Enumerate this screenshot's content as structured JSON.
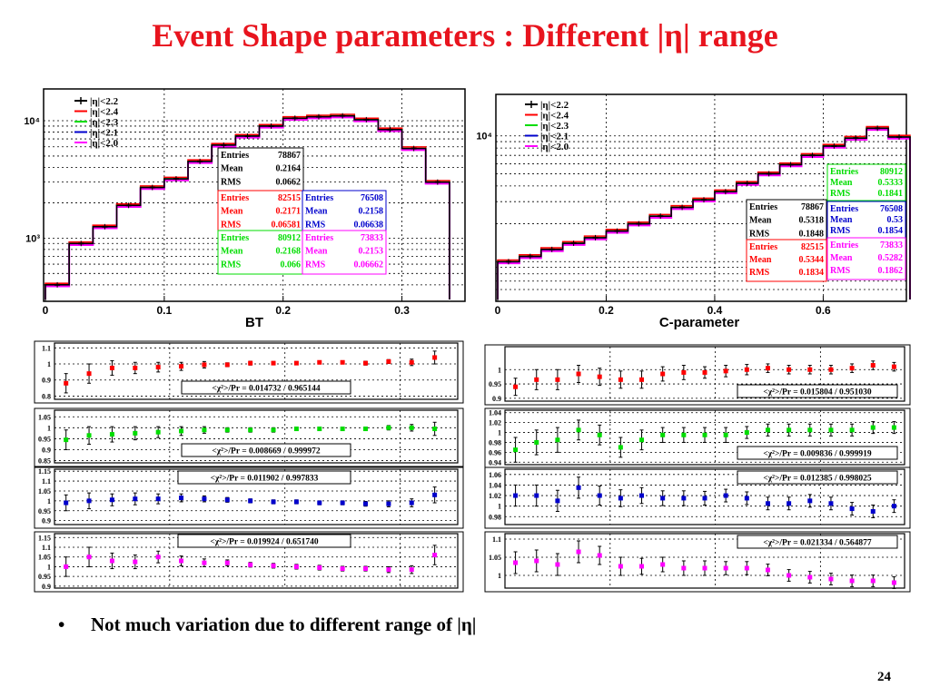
{
  "slide": {
    "title": "Event Shape parameters : Different |η| range",
    "bullet": "Not much variation due to different range of |η|",
    "page_number": "24"
  },
  "colors": {
    "title": "#e8141e",
    "eta22": "#000000",
    "eta24": "#ff0000",
    "eta23": "#00dd00",
    "eta21": "#0000cc",
    "eta20": "#ff00ff"
  },
  "chart_data": [
    {
      "id": "bt_dist",
      "type": "line",
      "xlabel": "BT",
      "xlim": [
        0,
        0.35
      ],
      "ylog": true,
      "ylim": [
        300,
        18000
      ],
      "x_ticks": [
        0,
        0.1,
        0.2,
        0.3
      ],
      "x_tick_labels": [
        "0",
        "0.1",
        "0.2",
        "0.3"
      ],
      "y_ticks": [
        1000,
        10000
      ],
      "y_tick_labels": [
        "10³",
        "10⁴"
      ],
      "legend": [
        "|η|<2.2",
        "|η|<2.4",
        "|η|<2.3",
        "|η|<2.1",
        "|η|<2.0"
      ],
      "x": [
        0.01,
        0.03,
        0.05,
        0.07,
        0.09,
        0.11,
        0.13,
        0.15,
        0.17,
        0.19,
        0.21,
        0.23,
        0.25,
        0.27,
        0.29,
        0.31,
        0.33
      ],
      "values": [
        400,
        900,
        1250,
        1900,
        2700,
        3200,
        4500,
        6200,
        7400,
        9000,
        10500,
        10800,
        11000,
        10200,
        8400,
        5800,
        3000
      ],
      "stats": [
        {
          "series": "|η|<2.2",
          "rows": [
            [
              "Entries",
              "78867"
            ],
            [
              "Mean",
              "0.2164"
            ],
            [
              "RMS",
              "0.0662"
            ]
          ]
        },
        {
          "series": "|η|<2.4",
          "rows": [
            [
              "Entries",
              "82515"
            ],
            [
              "Mean",
              "0.2171"
            ],
            [
              "RMS",
              "0.06581"
            ]
          ]
        },
        {
          "series": "|η|<2.1",
          "rows": [
            [
              "Entries",
              "76508"
            ],
            [
              "Mean",
              "0.2158"
            ],
            [
              "RMS",
              "0.06638"
            ]
          ]
        },
        {
          "series": "|η|<2.3",
          "rows": [
            [
              "Entries",
              "80912"
            ],
            [
              "Mean",
              "0.2168"
            ],
            [
              "RMS",
              "0.066"
            ]
          ]
        },
        {
          "series": "|η|<2.0",
          "rows": [
            [
              "Entries",
              "73833"
            ],
            [
              "Mean",
              "0.2153"
            ],
            [
              "RMS",
              "0.06662"
            ]
          ]
        }
      ]
    },
    {
      "id": "c_dist",
      "type": "line",
      "xlabel": "C-parameter",
      "xlim": [
        0,
        0.75
      ],
      "ylog": true,
      "ylim": [
        500,
        20000
      ],
      "x_ticks": [
        0,
        0.2,
        0.4,
        0.6
      ],
      "x_tick_labels": [
        "0",
        "0.2",
        "0.4",
        "0.6"
      ],
      "y_ticks": [
        10000
      ],
      "y_tick_labels": [
        "10⁴"
      ],
      "legend": [
        "|η|<2.2",
        "|η|<2.4",
        "|η|<2.3",
        "|η|<2.1",
        "|η|<2.0"
      ],
      "x": [
        0.02,
        0.06,
        0.1,
        0.14,
        0.18,
        0.22,
        0.26,
        0.3,
        0.34,
        0.38,
        0.42,
        0.46,
        0.5,
        0.54,
        0.58,
        0.62,
        0.66,
        0.7,
        0.74
      ],
      "values": [
        1000,
        1100,
        1250,
        1400,
        1550,
        1750,
        2000,
        2300,
        2700,
        3100,
        3600,
        4200,
        5000,
        5900,
        7000,
        8300,
        9600,
        11500,
        9800
      ],
      "stats": [
        {
          "series": "|η|<2.3",
          "rows": [
            [
              "Entries",
              "80912"
            ],
            [
              "Mean",
              "0.5333"
            ],
            [
              "RMS",
              "0.1841"
            ]
          ]
        },
        {
          "series": "|η|<2.1",
          "rows": [
            [
              "Entries",
              "76508"
            ],
            [
              "Mean",
              "0.53"
            ],
            [
              "RMS",
              "0.1854"
            ]
          ]
        },
        {
          "series": "|η|<2.2",
          "rows": [
            [
              "Entries",
              "78867"
            ],
            [
              "Mean",
              "0.5318"
            ],
            [
              "RMS",
              "0.1848"
            ]
          ]
        },
        {
          "series": "|η|<2.0",
          "rows": [
            [
              "Entries",
              "73833"
            ],
            [
              "Mean",
              "0.5282"
            ],
            [
              "RMS",
              "0.1862"
            ]
          ]
        },
        {
          "series": "|η|<2.4",
          "rows": [
            [
              "Entries",
              "82515"
            ],
            [
              "Mean",
              "0.5344"
            ],
            [
              "RMS",
              "0.1834"
            ]
          ]
        }
      ]
    },
    {
      "id": "bt_ratio_24",
      "type": "scatter",
      "series": "|η|<2.4",
      "color": "#ff0000",
      "ylim": [
        0.78,
        1.13
      ],
      "y_tick_labels": [
        "1.1",
        "1",
        "0.9",
        "0.8"
      ],
      "y_ticks": [
        1.1,
        1.0,
        0.9,
        0.8
      ],
      "chi_text": "<χ²>/Pr = 0.014732 / 0.965144",
      "x": [
        0.01,
        0.03,
        0.05,
        0.07,
        0.09,
        0.11,
        0.13,
        0.15,
        0.17,
        0.19,
        0.21,
        0.23,
        0.25,
        0.27,
        0.29,
        0.31,
        0.33
      ],
      "values": [
        0.88,
        0.94,
        0.975,
        0.975,
        0.98,
        0.985,
        0.995,
        0.995,
        1.005,
        1.005,
        1.005,
        1.01,
        1.01,
        1.005,
        1.015,
        1.01,
        1.04
      ],
      "errors": [
        0.06,
        0.06,
        0.045,
        0.035,
        0.03,
        0.025,
        0.02,
        0.012,
        0.012,
        0.01,
        0.01,
        0.01,
        0.01,
        0.012,
        0.012,
        0.02,
        0.04
      ]
    },
    {
      "id": "bt_ratio_23",
      "type": "scatter",
      "series": "|η|<2.3",
      "color": "#00dd00",
      "ylim": [
        0.84,
        1.08
      ],
      "y_tick_labels": [
        "1.05",
        "1",
        "0.95",
        "0.9",
        "0.85"
      ],
      "y_ticks": [
        1.05,
        1.0,
        0.95,
        0.9,
        0.85
      ],
      "chi_text": "<χ²>/Pr = 0.008669 / 0.999972",
      "x": [
        0.01,
        0.03,
        0.05,
        0.07,
        0.09,
        0.11,
        0.13,
        0.15,
        0.17,
        0.19,
        0.21,
        0.23,
        0.25,
        0.27,
        0.29,
        0.31,
        0.33
      ],
      "values": [
        0.945,
        0.965,
        0.97,
        0.975,
        0.98,
        0.985,
        0.99,
        0.99,
        0.99,
        0.99,
        0.995,
        0.995,
        0.995,
        0.995,
        1.0,
        1.0,
        0.995
      ],
      "errors": [
        0.045,
        0.04,
        0.035,
        0.03,
        0.025,
        0.02,
        0.015,
        0.01,
        0.01,
        0.01,
        0.008,
        0.008,
        0.008,
        0.008,
        0.01,
        0.015,
        0.03
      ]
    },
    {
      "id": "bt_ratio_21",
      "type": "scatter",
      "series": "|η|<2.1",
      "color": "#0000cc",
      "ylim": [
        0.88,
        1.16
      ],
      "y_tick_labels": [
        "1.15",
        "1.1",
        "1.05",
        "1",
        "0.95",
        "0.9"
      ],
      "y_ticks": [
        1.15,
        1.1,
        1.05,
        1.0,
        0.95,
        0.9
      ],
      "chi_text": "<χ²>/Pr = 0.011902 / 0.997833",
      "x": [
        0.01,
        0.03,
        0.05,
        0.07,
        0.09,
        0.11,
        0.13,
        0.15,
        0.17,
        0.19,
        0.21,
        0.23,
        0.25,
        0.27,
        0.29,
        0.31,
        0.33
      ],
      "values": [
        0.99,
        1.0,
        1.005,
        1.01,
        1.01,
        1.015,
        1.01,
        1.005,
        1.0,
        0.995,
        0.995,
        0.99,
        0.99,
        0.985,
        0.985,
        0.99,
        1.03
      ],
      "errors": [
        0.04,
        0.04,
        0.03,
        0.03,
        0.025,
        0.02,
        0.015,
        0.012,
        0.01,
        0.01,
        0.01,
        0.01,
        0.01,
        0.012,
        0.015,
        0.02,
        0.04
      ]
    },
    {
      "id": "bt_ratio_20",
      "type": "scatter",
      "series": "|η|<2.0",
      "color": "#ff00ff",
      "ylim": [
        0.89,
        1.17
      ],
      "y_tick_labels": [
        "1.15",
        "1.1",
        "1.05",
        "1",
        "0.95",
        "0.9"
      ],
      "y_ticks": [
        1.15,
        1.1,
        1.05,
        1.0,
        0.95,
        0.9
      ],
      "chi_text": "<χ²>/Pr = 0.019924 / 0.651740",
      "x": [
        0.01,
        0.03,
        0.05,
        0.07,
        0.09,
        0.11,
        0.13,
        0.15,
        0.17,
        0.19,
        0.21,
        0.23,
        0.25,
        0.27,
        0.29,
        0.31,
        0.33
      ],
      "values": [
        1.0,
        1.05,
        1.03,
        1.025,
        1.05,
        1.03,
        1.02,
        1.02,
        1.01,
        1.005,
        1.0,
        0.995,
        0.99,
        0.99,
        0.985,
        0.985,
        1.06
      ],
      "errors": [
        0.05,
        0.05,
        0.04,
        0.035,
        0.03,
        0.025,
        0.02,
        0.015,
        0.012,
        0.012,
        0.012,
        0.012,
        0.012,
        0.012,
        0.015,
        0.02,
        0.05
      ]
    },
    {
      "id": "c_ratio_24",
      "type": "scatter",
      "series": "|η|<2.4",
      "color": "#ff0000",
      "ylim": [
        0.89,
        1.08
      ],
      "y_tick_labels": [
        "1",
        "0.95",
        "0.9"
      ],
      "y_ticks": [
        1.0,
        0.95,
        0.9
      ],
      "chi_text": "<χ²>/Pr = 0.015804 / 0.951030",
      "x": [
        0.02,
        0.06,
        0.1,
        0.14,
        0.18,
        0.22,
        0.26,
        0.3,
        0.34,
        0.38,
        0.42,
        0.46,
        0.5,
        0.54,
        0.58,
        0.62,
        0.66,
        0.7,
        0.74
      ],
      "values": [
        0.94,
        0.965,
        0.965,
        0.985,
        0.975,
        0.965,
        0.965,
        0.985,
        0.99,
        0.99,
        0.995,
        1.0,
        1.005,
        1.0,
        1.0,
        1.0,
        1.005,
        1.015,
        1.01
      ],
      "errors": [
        0.03,
        0.035,
        0.035,
        0.03,
        0.03,
        0.03,
        0.03,
        0.025,
        0.025,
        0.02,
        0.02,
        0.018,
        0.015,
        0.015,
        0.015,
        0.015,
        0.015,
        0.015,
        0.015
      ]
    },
    {
      "id": "c_ratio_23",
      "type": "scatter",
      "series": "|η|<2.3",
      "color": "#00dd00",
      "ylim": [
        0.935,
        1.045
      ],
      "y_tick_labels": [
        "1.04",
        "1.02",
        "1",
        "0.98",
        "0.96",
        "0.94"
      ],
      "y_ticks": [
        1.04,
        1.02,
        1.0,
        0.98,
        0.96,
        0.94
      ],
      "chi_text": "<χ²>/Pr = 0.009836 / 0.999919",
      "x": [
        0.02,
        0.06,
        0.1,
        0.14,
        0.18,
        0.22,
        0.26,
        0.3,
        0.34,
        0.38,
        0.42,
        0.46,
        0.5,
        0.54,
        0.58,
        0.62,
        0.66,
        0.7,
        0.74
      ],
      "values": [
        0.965,
        0.98,
        0.985,
        1.005,
        0.995,
        0.97,
        0.985,
        0.995,
        0.995,
        0.995,
        0.995,
        1.0,
        1.005,
        1.005,
        1.005,
        1.005,
        1.005,
        1.01,
        1.01
      ],
      "errors": [
        0.025,
        0.025,
        0.025,
        0.02,
        0.02,
        0.02,
        0.02,
        0.015,
        0.015,
        0.015,
        0.015,
        0.012,
        0.012,
        0.012,
        0.012,
        0.012,
        0.012,
        0.012,
        0.012
      ]
    },
    {
      "id": "c_ratio_21",
      "type": "scatter",
      "series": "|η|<2.1",
      "color": "#0000cc",
      "ylim": [
        0.965,
        1.07
      ],
      "y_tick_labels": [
        "1.06",
        "1.04",
        "1.02",
        "1",
        "0.98"
      ],
      "y_ticks": [
        1.06,
        1.04,
        1.02,
        1.0,
        0.98
      ],
      "chi_text": "<χ²>/Pr = 0.012385 / 0.998025",
      "x": [
        0.02,
        0.06,
        0.1,
        0.14,
        0.18,
        0.22,
        0.26,
        0.3,
        0.34,
        0.38,
        0.42,
        0.46,
        0.5,
        0.54,
        0.58,
        0.62,
        0.66,
        0.7,
        0.74
      ],
      "values": [
        1.02,
        1.02,
        1.01,
        1.035,
        1.02,
        1.015,
        1.02,
        1.015,
        1.015,
        1.015,
        1.02,
        1.015,
        1.005,
        1.005,
        1.01,
        1.005,
        0.995,
        0.99,
        1.0
      ],
      "errors": [
        0.02,
        0.02,
        0.02,
        0.02,
        0.018,
        0.016,
        0.015,
        0.014,
        0.014,
        0.013,
        0.012,
        0.012,
        0.012,
        0.012,
        0.012,
        0.012,
        0.012,
        0.012,
        0.012
      ]
    },
    {
      "id": "c_ratio_20",
      "type": "scatter",
      "series": "|η|<2.0",
      "color": "#ff00ff",
      "ylim": [
        0.965,
        1.115
      ],
      "y_tick_labels": [
        "1.1",
        "1.05",
        "1"
      ],
      "y_ticks": [
        1.1,
        1.05,
        1.0
      ],
      "chi_text": "<χ²>/Pr = 0.021334 / 0.564877",
      "x": [
        0.02,
        0.06,
        0.1,
        0.14,
        0.18,
        0.22,
        0.26,
        0.3,
        0.34,
        0.38,
        0.42,
        0.46,
        0.5,
        0.54,
        0.58,
        0.62,
        0.66,
        0.7,
        0.74
      ],
      "values": [
        1.035,
        1.04,
        1.03,
        1.065,
        1.055,
        1.025,
        1.025,
        1.03,
        1.02,
        1.02,
        1.02,
        1.02,
        1.015,
        1.0,
        0.995,
        0.99,
        0.985,
        0.985,
        0.98
      ],
      "errors": [
        0.03,
        0.03,
        0.03,
        0.03,
        0.025,
        0.025,
        0.022,
        0.02,
        0.02,
        0.02,
        0.018,
        0.018,
        0.016,
        0.016,
        0.016,
        0.016,
        0.016,
        0.016,
        0.016
      ]
    }
  ]
}
